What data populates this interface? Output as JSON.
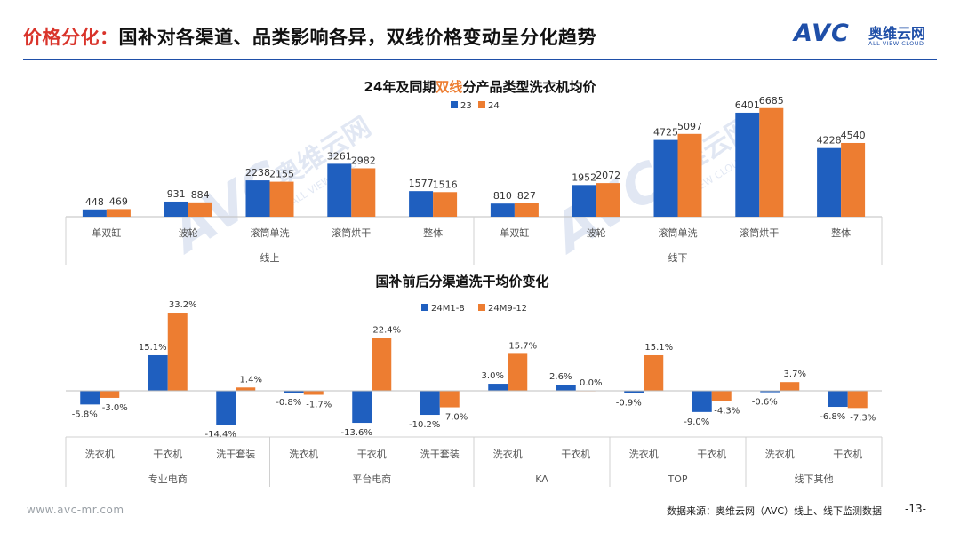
{
  "header": {
    "title_highlight": "价格分化：",
    "title_rest": "国补对各渠道、品类影响各异，双线价格变动呈分化趋势"
  },
  "logo": {
    "mark": "AVC",
    "cn": "奥维云网",
    "en": "ALL VIEW CLOUD"
  },
  "watermark": {
    "mark": "AVC",
    "cn": "奥维云网",
    "en": "ALL VIEW CLOUD"
  },
  "footer": {
    "website": "www.avc-mr.com",
    "source": "数据来源：奥维云网（AVC）线上、线下监测数据",
    "page": "-13-"
  },
  "colors": {
    "series1": "#1f5fbf",
    "series2": "#ed7d31",
    "accent": "#d9342b",
    "brand": "#1f4fa8"
  },
  "chart_data": [
    {
      "type": "bar",
      "title_parts": [
        "24年及同期",
        "双线",
        "分产品类型洗衣机均价"
      ],
      "legend_position": "top-center",
      "groups": [
        {
          "name": "线上",
          "categories": [
            "单双缸",
            "波轮",
            "滚筒单洗",
            "滚筒烘干",
            "整体"
          ]
        },
        {
          "name": "线下",
          "categories": [
            "单双缸",
            "波轮",
            "滚筒单洗",
            "滚筒烘干",
            "整体"
          ]
        }
      ],
      "series": [
        {
          "name": "23",
          "values": [
            448,
            931,
            2238,
            3261,
            1577,
            810,
            1952,
            4725,
            6401,
            4228
          ]
        },
        {
          "name": "24",
          "values": [
            469,
            884,
            2155,
            2982,
            1516,
            827,
            2072,
            5097,
            6685,
            4540
          ]
        }
      ],
      "ylim": [
        0,
        7000
      ]
    },
    {
      "type": "bar",
      "title": "国补前后分渠道洗干均价变化",
      "legend_position": "top-center",
      "groups": [
        {
          "name": "专业电商",
          "categories": [
            "洗衣机",
            "干衣机",
            "洗干套装"
          ]
        },
        {
          "name": "平台电商",
          "categories": [
            "洗衣机",
            "干衣机",
            "洗干套装"
          ]
        },
        {
          "name": "KA",
          "categories": [
            "洗衣机",
            "干衣机"
          ]
        },
        {
          "name": "TOP",
          "categories": [
            "洗衣机",
            "干衣机"
          ]
        },
        {
          "name": "线下其他",
          "categories": [
            "洗衣机",
            "干衣机"
          ]
        }
      ],
      "series": [
        {
          "name": "24M1-8",
          "values": [
            -5.8,
            15.1,
            -14.4,
            -0.8,
            -13.6,
            -10.2,
            3.0,
            2.6,
            -0.9,
            -9.0,
            -0.6,
            -6.8
          ],
          "labels": [
            "-5.8%",
            "15.1%",
            "-14.4%",
            "-0.8%",
            "-13.6%",
            "-10.2%",
            "3.0%",
            "2.6%",
            "-0.9%",
            "-9.0%",
            "-0.6%",
            "-6.8%"
          ]
        },
        {
          "name": "24M9-12",
          "values": [
            -3.0,
            33.2,
            1.4,
            -1.7,
            22.4,
            -7.0,
            15.7,
            0.0,
            15.1,
            -4.3,
            3.7,
            -7.3
          ],
          "labels": [
            "-3.0%",
            "33.2%",
            "1.4%",
            "-1.7%",
            "22.4%",
            "-7.0%",
            "15.7%",
            "0.0%",
            "15.1%",
            "-4.3%",
            "3.7%",
            "-7.3%"
          ]
        }
      ],
      "unit": "%"
    }
  ]
}
